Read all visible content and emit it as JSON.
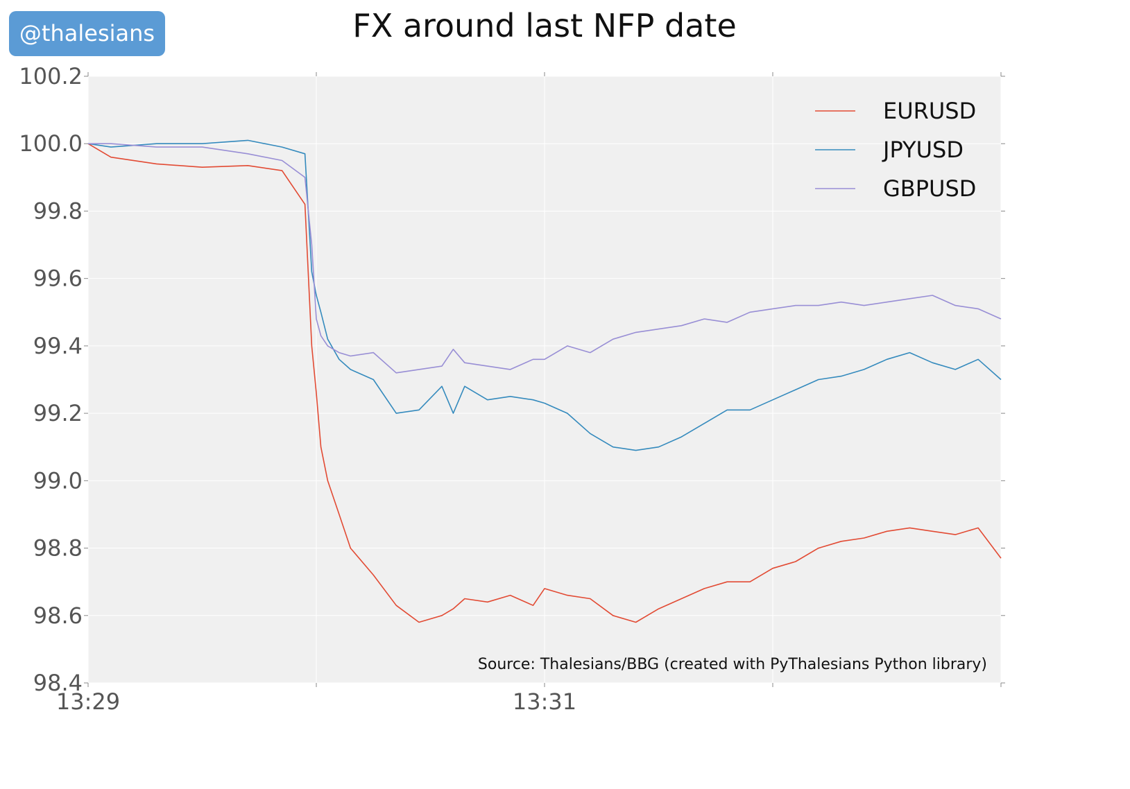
{
  "badge": {
    "text": "@thalesians"
  },
  "chart_data": {
    "type": "line",
    "title": "FX around last NFP date",
    "xlabel": "",
    "ylabel": "",
    "ylim": [
      98.4,
      100.2
    ],
    "yticks": [
      "100.2",
      "100.0",
      "99.8",
      "99.6",
      "99.4",
      "99.2",
      "99.0",
      "98.8",
      "98.6",
      "98.4"
    ],
    "xticks": [
      "13:29",
      "13:31"
    ],
    "x_minutes": [
      0,
      0.1,
      0.3,
      0.5,
      0.7,
      0.85,
      0.95,
      0.98,
      1.0,
      1.02,
      1.05,
      1.1,
      1.15,
      1.25,
      1.35,
      1.45,
      1.55,
      1.6,
      1.65,
      1.75,
      1.85,
      1.95,
      2.0,
      2.1,
      2.2,
      2.3,
      2.4,
      2.5,
      2.6,
      2.7,
      2.8,
      2.9,
      3.0,
      3.1,
      3.2,
      3.3,
      3.4,
      3.5,
      3.6,
      3.7,
      3.8,
      3.9,
      4.0
    ],
    "grid": true,
    "legend_position": "top-right",
    "annotation": "Source: Thalesians/BBG (created with PyThalesians Python library)",
    "series": [
      {
        "name": "EURUSD",
        "color": "#e24a33",
        "values": [
          100.0,
          99.96,
          99.94,
          99.93,
          99.935,
          99.92,
          99.82,
          99.4,
          99.26,
          99.1,
          99.0,
          98.9,
          98.8,
          98.72,
          98.63,
          98.58,
          98.6,
          98.62,
          98.65,
          98.64,
          98.66,
          98.63,
          98.68,
          98.66,
          98.65,
          98.6,
          98.58,
          98.62,
          98.65,
          98.68,
          98.7,
          98.7,
          98.74,
          98.76,
          98.8,
          98.82,
          98.83,
          98.85,
          98.86,
          98.85,
          98.84,
          98.86,
          98.77
        ]
      },
      {
        "name": "JPYUSD",
        "color": "#348abd",
        "values": [
          100.0,
          99.99,
          100.0,
          100.0,
          100.01,
          99.99,
          99.97,
          99.62,
          99.55,
          99.5,
          99.42,
          99.36,
          99.33,
          99.3,
          99.2,
          99.21,
          99.28,
          99.2,
          99.28,
          99.24,
          99.25,
          99.24,
          99.23,
          99.2,
          99.14,
          99.1,
          99.09,
          99.1,
          99.13,
          99.17,
          99.21,
          99.21,
          99.24,
          99.27,
          99.3,
          99.31,
          99.33,
          99.36,
          99.38,
          99.35,
          99.33,
          99.36,
          99.3
        ]
      },
      {
        "name": "GBPUSD",
        "color": "#988ed5",
        "values": [
          100.0,
          100.0,
          99.99,
          99.99,
          99.97,
          99.95,
          99.9,
          99.7,
          99.48,
          99.43,
          99.4,
          99.38,
          99.37,
          99.38,
          99.32,
          99.33,
          99.34,
          99.39,
          99.35,
          99.34,
          99.33,
          99.36,
          99.36,
          99.4,
          99.38,
          99.42,
          99.44,
          99.45,
          99.46,
          99.48,
          99.47,
          99.5,
          99.51,
          99.52,
          99.52,
          99.53,
          99.52,
          99.53,
          99.54,
          99.55,
          99.52,
          99.51,
          99.48
        ]
      }
    ]
  }
}
